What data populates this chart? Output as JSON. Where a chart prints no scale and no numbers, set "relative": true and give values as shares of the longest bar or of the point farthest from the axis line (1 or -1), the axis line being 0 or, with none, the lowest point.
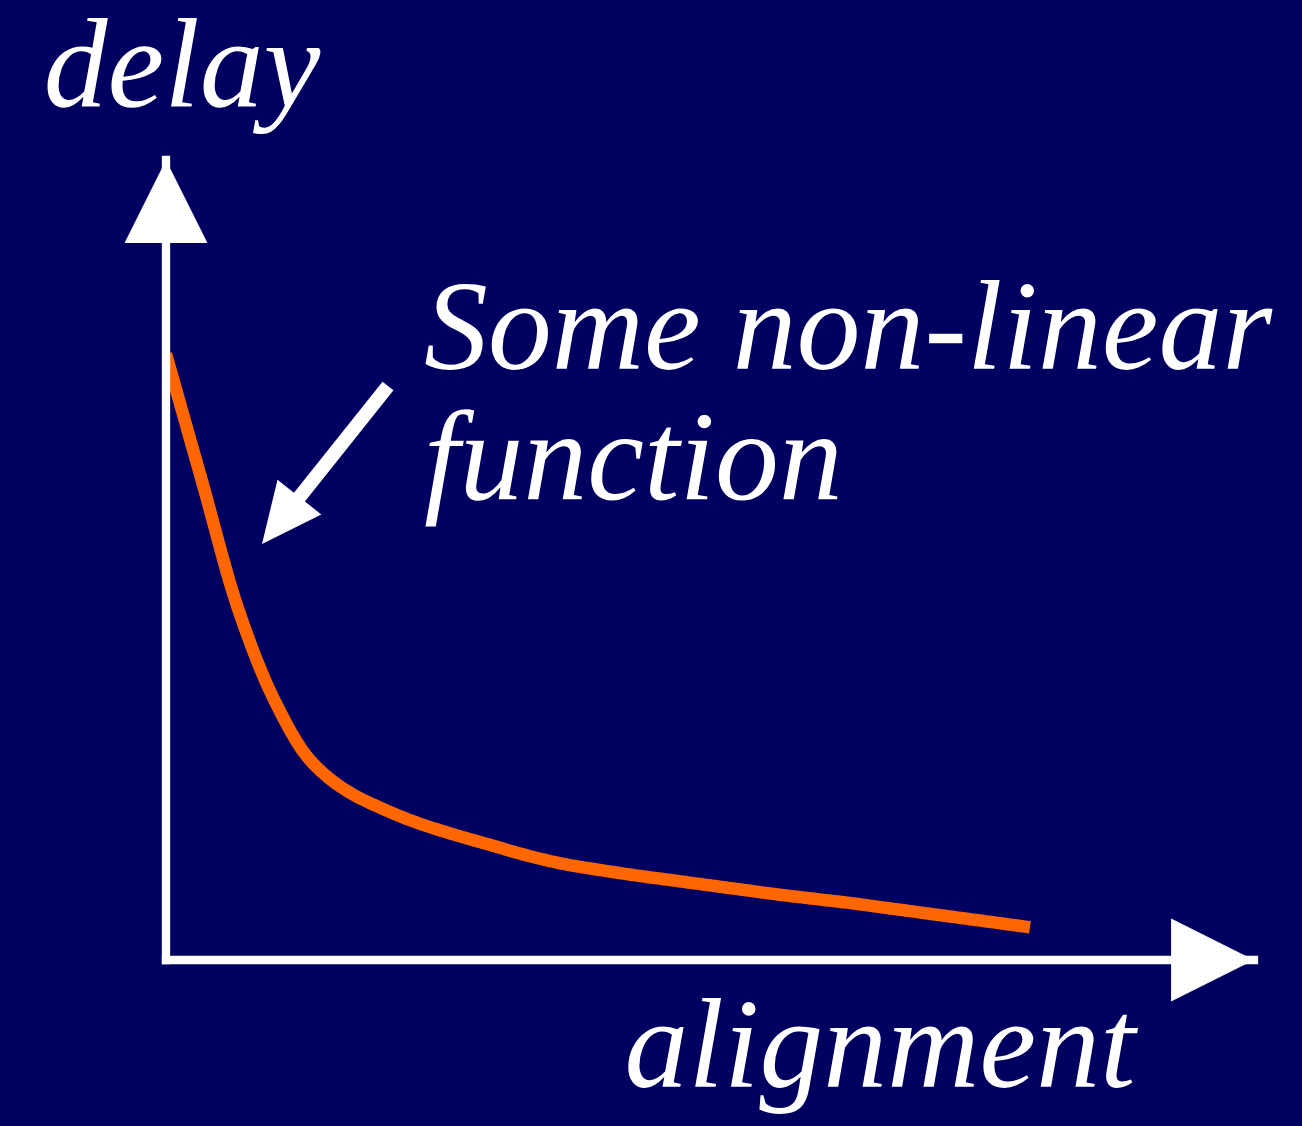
{
  "chart_data": {
    "type": "line",
    "relative": true,
    "categories": [
      null,
      null,
      null,
      null,
      null,
      null,
      null,
      null,
      null,
      null,
      null,
      null,
      null,
      null,
      null,
      null,
      null,
      null,
      null,
      null,
      null,
      null,
      null,
      null,
      null
    ],
    "values": [
      1,
      0.79,
      0.58,
      0.43,
      0.33,
      0.28,
      0.25,
      0.226,
      0.207,
      0.19,
      0.173,
      0.159,
      0.149,
      0.14,
      0.132,
      0.124,
      0.116,
      0.108,
      0.101,
      0.094,
      0.086,
      0.078,
      0.07,
      0.062,
      0.054
    ],
    "color": "#ff6600",
    "xlabel": "alignment",
    "ylabel": "delay",
    "annotations": [
      "Some non-linear\nfunction"
    ]
  }
}
